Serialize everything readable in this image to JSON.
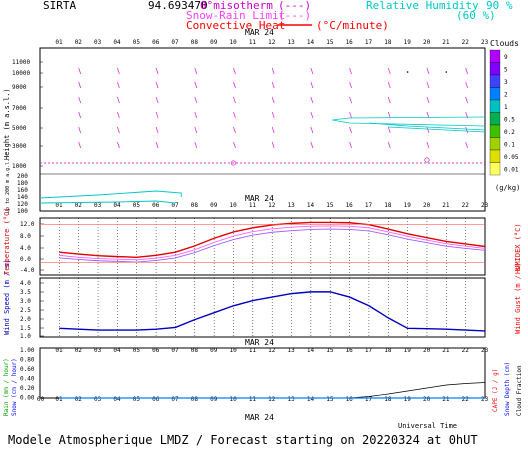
{
  "header": {
    "station": "SIRTA",
    "coords": "94.693470",
    "legend_left": [
      {
        "label": "0°misotherm",
        "key": "(---)",
        "color": "#d000d0"
      },
      {
        "label": "Snow-Rain Limit",
        "key": "(---)",
        "color": "#ff40ff"
      },
      {
        "label": "Convective Heat",
        "key": "(°C/minute)",
        "color": "#ff0000"
      }
    ],
    "legend_right": [
      {
        "label": "Relative Humidity",
        "value": "90 %",
        "color": "#00c8c8"
      },
      {
        "label": "",
        "value": "(60 %)",
        "color": "#00c8c8"
      }
    ]
  },
  "date_label": "MAR 24",
  "hours": [
    "01",
    "02",
    "03",
    "04",
    "05",
    "06",
    "07",
    "08",
    "09",
    "10",
    "11",
    "12",
    "13",
    "14",
    "15",
    "16",
    "17",
    "18",
    "19",
    "20",
    "21",
    "22",
    "23"
  ],
  "hour_labels_x": [
    "00",
    "01",
    "02",
    "03",
    "04",
    "05",
    "06",
    "07",
    "08",
    "09",
    "10",
    "11",
    "12",
    "13",
    "14",
    "15",
    "16",
    "17",
    "18",
    "19",
    "20",
    "21",
    "22",
    "23"
  ],
  "footer": "Modele Atmospherique LMDZ / Forecast starting on 20220324 at 0hUT",
  "xaxis_title": "Universal Time",
  "colorbar": {
    "title": "Clouds",
    "unit": "(g/kg)",
    "labels": [
      "9",
      "5",
      "3",
      "2",
      "1",
      "0.5",
      "0.2",
      "0.1",
      "0.05",
      "0.01"
    ],
    "colors": [
      "#b000ff",
      "#8000ff",
      "#4040ff",
      "#0080ff",
      "#00c0c0",
      "#00b050",
      "#40c000",
      "#a0d000",
      "#e0e000",
      "#ffff60"
    ]
  },
  "chart_data": [
    {
      "type": "heatmap",
      "title": "",
      "ylabel": "Height (m a.s.l.)",
      "ylabel2": "Up to 200 m a.g.l.",
      "upper_ticks": [
        "11000",
        "10000",
        "9000",
        "7000",
        "5000",
        "3000",
        "1000"
      ],
      "lower_ticks": [
        "200",
        "180",
        "160",
        "140",
        "120",
        "100"
      ],
      "zero_isotherm_m": 1500,
      "relative_humidity_contours": "90% and 60% near 5000 m from 16h; near 150 m until 08h"
    },
    {
      "type": "line",
      "ylabel": "Temperature (°C)",
      "ylabel2": "HUMIDEX (°C)",
      "yticks": [
        "12.0",
        "8.0",
        "4.0",
        "0.0",
        "-4.0"
      ],
      "ylim": [
        -4,
        14
      ],
      "x": [
        1,
        2,
        3,
        4,
        5,
        6,
        7,
        8,
        9,
        10,
        11,
        12,
        13,
        14,
        15,
        16,
        17,
        18,
        19,
        20,
        21,
        22,
        23
      ],
      "series": [
        {
          "name": "",
          "color": "#e00000",
          "values": [
            3.2,
            2.6,
            2.1,
            1.8,
            1.6,
            2.2,
            3.2,
            5.2,
            7.6,
            9.6,
            10.9,
            11.8,
            12.3,
            12.6,
            12.6,
            12.5,
            11.9,
            10.5,
            9.0,
            7.8,
            6.6,
            5.8,
            5.0
          ]
        },
        {
          "name": "",
          "color": "#ff60ff",
          "values": [
            2.2,
            1.6,
            1.2,
            1.0,
            0.8,
            1.3,
            2.2,
            4.0,
            6.3,
            8.3,
            9.7,
            10.6,
            11.1,
            11.4,
            11.5,
            11.4,
            10.9,
            9.6,
            8.2,
            7.0,
            5.9,
            5.1,
            4.4
          ]
        },
        {
          "name": "",
          "color": "#a060ff",
          "values": [
            1.4,
            0.9,
            0.5,
            0.3,
            0.1,
            0.6,
            1.4,
            3.1,
            5.3,
            7.2,
            8.6,
            9.5,
            10.0,
            10.4,
            10.5,
            10.4,
            9.9,
            8.7,
            7.3,
            6.2,
            5.1,
            4.4,
            3.8
          ]
        }
      ]
    },
    {
      "type": "line",
      "ylabel": "Wind Speed (m / s)",
      "ylabel2": "Wind Gust (m / s)",
      "yticks": [
        "4.0",
        "3.5",
        "3.0",
        "2.5",
        "2.0",
        "1.5",
        "1.0"
      ],
      "ylim": [
        0.8,
        4.2
      ],
      "x": [
        1,
        2,
        3,
        4,
        5,
        6,
        7,
        8,
        9,
        10,
        11,
        12,
        13,
        14,
        15,
        16,
        17,
        18,
        19,
        20,
        21,
        22,
        23
      ],
      "series": [
        {
          "name": "",
          "color": "#0000c0",
          "values": [
            1.3,
            1.25,
            1.2,
            1.2,
            1.2,
            1.25,
            1.35,
            1.8,
            2.2,
            2.6,
            2.9,
            3.1,
            3.3,
            3.4,
            3.4,
            3.1,
            2.6,
            1.9,
            1.3,
            1.28,
            1.25,
            1.2,
            1.15
          ]
        }
      ]
    },
    {
      "type": "line",
      "ylabel": "Rain (mm / hour)",
      "ylabel2": "Snow (cm / hour)",
      "ylabel3": "CAPE (J / g)",
      "ylabel4": "Snow Depth (cm)",
      "ylabel5": "Cloud Fraction",
      "yticks": [
        "1.00",
        "0.80",
        "0.60",
        "0.40",
        "0.20",
        "0.00"
      ],
      "ylim": [
        0,
        1
      ],
      "x": [
        1,
        2,
        3,
        4,
        5,
        6,
        7,
        8,
        9,
        10,
        11,
        12,
        13,
        14,
        15,
        16,
        17,
        18,
        19,
        20,
        21,
        22,
        23
      ],
      "series": [
        {
          "name": "",
          "color": "#000000",
          "values": [
            0,
            0,
            0,
            0,
            0,
            0,
            0,
            0,
            0,
            0,
            0,
            0,
            0,
            0,
            0,
            0,
            0.03,
            0.08,
            0.14,
            0.2,
            0.26,
            0.29,
            0.31
          ]
        },
        {
          "name": "",
          "color": "#0080ff",
          "values": [
            0,
            0,
            0,
            0,
            0,
            0,
            0,
            0,
            0,
            0,
            0,
            0,
            0,
            0,
            0,
            0,
            0,
            0,
            0,
            0,
            0,
            0,
            0
          ]
        }
      ]
    }
  ]
}
